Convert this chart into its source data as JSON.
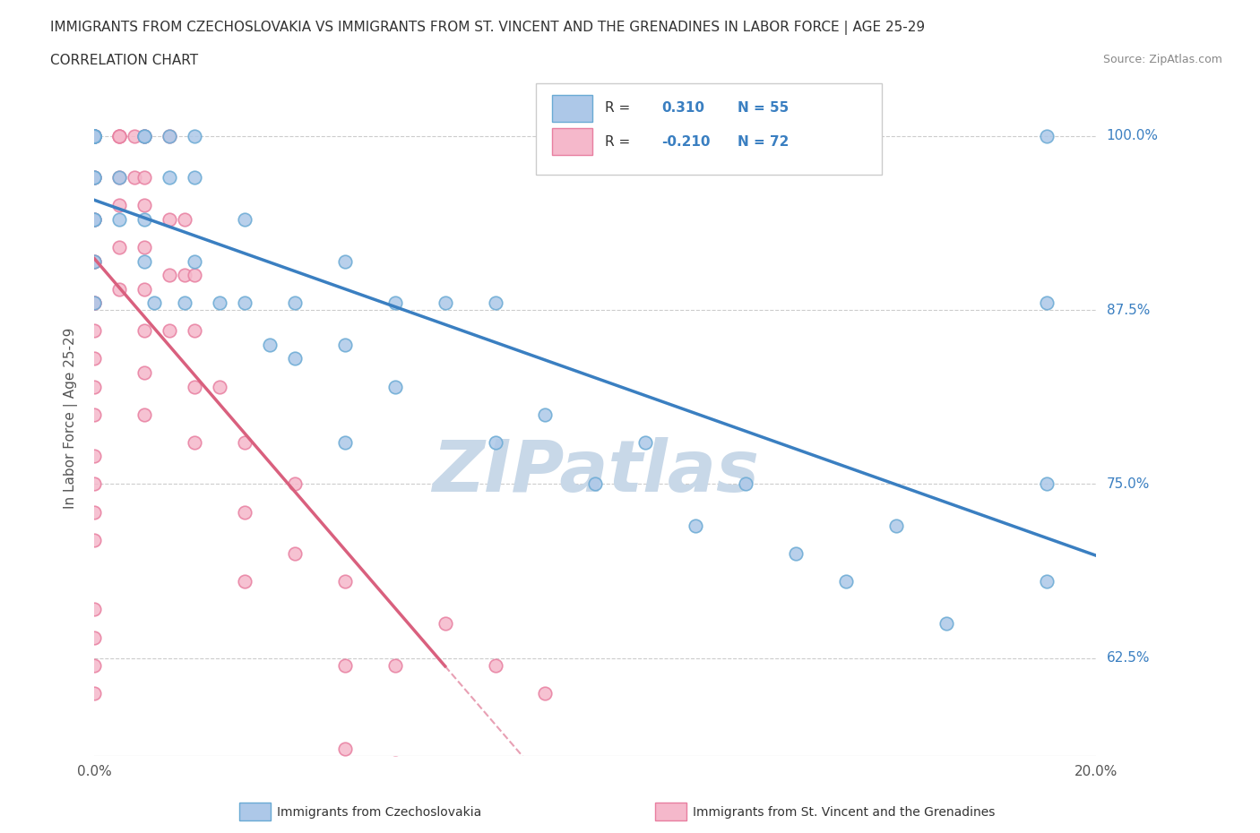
{
  "title_line1": "IMMIGRANTS FROM CZECHOSLOVAKIA VS IMMIGRANTS FROM ST. VINCENT AND THE GRENADINES IN LABOR FORCE | AGE 25-29",
  "title_line2": "CORRELATION CHART",
  "source_text": "Source: ZipAtlas.com",
  "ylabel": "In Labor Force | Age 25-29",
  "xlim": [
    0.0,
    0.2
  ],
  "ylim": [
    0.555,
    1.04
  ],
  "yticks": [
    0.625,
    0.75,
    0.875,
    1.0
  ],
  "ytick_labels": [
    "62.5%",
    "75.0%",
    "87.5%",
    "100.0%"
  ],
  "xtick_positions": [
    0.0,
    0.2
  ],
  "xtick_labels": [
    "0.0%",
    "20.0%"
  ],
  "blue_R": 0.31,
  "blue_N": 55,
  "pink_R": -0.21,
  "pink_N": 72,
  "blue_color": "#adc8e8",
  "pink_color": "#f5b8cb",
  "blue_edge_color": "#6aaad4",
  "pink_edge_color": "#e87fa0",
  "blue_line_color": "#3a7fc1",
  "pink_line_color": "#d9607e",
  "pink_dashed_color": "#e8a0b4",
  "grid_color": "#cccccc",
  "watermark_color": "#c8d8e8",
  "legend_label_blue": "Immigrants from Czechoslovakia",
  "legend_label_pink": "Immigrants from St. Vincent and the Grenadines",
  "blue_scatter_x": [
    0.0,
    0.0,
    0.0,
    0.0,
    0.0,
    0.0,
    0.0,
    0.0,
    0.0,
    0.0,
    0.0,
    0.0,
    0.0,
    0.0,
    0.0,
    0.005,
    0.005,
    0.01,
    0.01,
    0.01,
    0.01,
    0.012,
    0.015,
    0.015,
    0.018,
    0.02,
    0.02,
    0.02,
    0.025,
    0.03,
    0.03,
    0.035,
    0.04,
    0.04,
    0.05,
    0.05,
    0.05,
    0.06,
    0.06,
    0.07,
    0.08,
    0.08,
    0.09,
    0.1,
    0.11,
    0.12,
    0.13,
    0.14,
    0.15,
    0.16,
    0.17,
    0.19,
    0.19,
    0.19,
    0.19
  ],
  "blue_scatter_y": [
    1.0,
    1.0,
    1.0,
    1.0,
    1.0,
    1.0,
    1.0,
    1.0,
    1.0,
    0.97,
    0.97,
    0.94,
    0.94,
    0.91,
    0.88,
    0.97,
    0.94,
    1.0,
    1.0,
    0.94,
    0.91,
    0.88,
    1.0,
    0.97,
    0.88,
    1.0,
    0.97,
    0.91,
    0.88,
    0.94,
    0.88,
    0.85,
    0.88,
    0.84,
    0.91,
    0.85,
    0.78,
    0.88,
    0.82,
    0.88,
    0.88,
    0.78,
    0.8,
    0.75,
    0.78,
    0.72,
    0.75,
    0.7,
    0.68,
    0.72,
    0.65,
    1.0,
    0.88,
    0.75,
    0.68
  ],
  "pink_scatter_x": [
    0.0,
    0.0,
    0.0,
    0.0,
    0.0,
    0.0,
    0.0,
    0.0,
    0.0,
    0.0,
    0.0,
    0.0,
    0.0,
    0.0,
    0.0,
    0.0,
    0.0,
    0.0,
    0.0,
    0.0,
    0.0,
    0.0,
    0.0,
    0.0,
    0.0,
    0.0,
    0.0,
    0.0,
    0.0,
    0.0,
    0.005,
    0.005,
    0.005,
    0.005,
    0.005,
    0.005,
    0.005,
    0.008,
    0.008,
    0.01,
    0.01,
    0.01,
    0.01,
    0.01,
    0.01,
    0.01,
    0.01,
    0.01,
    0.015,
    0.015,
    0.015,
    0.015,
    0.018,
    0.018,
    0.02,
    0.02,
    0.02,
    0.02,
    0.025,
    0.03,
    0.03,
    0.03,
    0.04,
    0.04,
    0.05,
    0.05,
    0.05,
    0.06,
    0.06,
    0.07,
    0.08,
    0.09
  ],
  "pink_scatter_y": [
    1.0,
    1.0,
    1.0,
    1.0,
    1.0,
    1.0,
    1.0,
    1.0,
    1.0,
    1.0,
    0.97,
    0.97,
    0.94,
    0.94,
    0.91,
    0.91,
    0.88,
    0.88,
    0.86,
    0.84,
    0.82,
    0.8,
    0.77,
    0.75,
    0.73,
    0.71,
    0.66,
    0.64,
    0.62,
    0.6,
    1.0,
    1.0,
    1.0,
    0.97,
    0.95,
    0.92,
    0.89,
    1.0,
    0.97,
    1.0,
    1.0,
    0.97,
    0.95,
    0.92,
    0.89,
    0.86,
    0.83,
    0.8,
    1.0,
    0.94,
    0.9,
    0.86,
    0.94,
    0.9,
    0.9,
    0.86,
    0.82,
    0.78,
    0.82,
    0.78,
    0.73,
    0.68,
    0.75,
    0.7,
    0.68,
    0.62,
    0.56,
    0.62,
    0.55,
    0.65,
    0.62,
    0.6
  ]
}
